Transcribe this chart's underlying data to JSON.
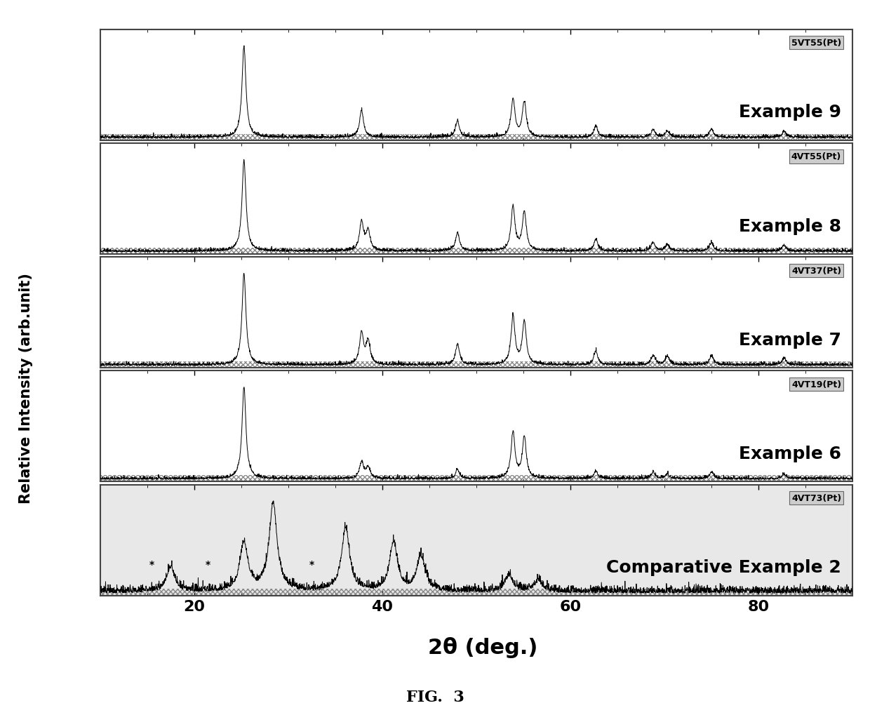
{
  "xlabel": "2θ (deg.)",
  "ylabel": "Relative Intensity (arb.unit)",
  "figure_title": "FIG.  3",
  "xmin": 10,
  "xmax": 90,
  "panels": [
    {
      "label": "Example 9",
      "sublabel": "5VT55(Pt)",
      "peaks": [
        25.3,
        37.8,
        48.0,
        53.9,
        55.1,
        62.7,
        68.8,
        70.3,
        75.0,
        82.7
      ],
      "heights": [
        1.0,
        0.3,
        0.18,
        0.42,
        0.38,
        0.12,
        0.08,
        0.07,
        0.09,
        0.06
      ],
      "widths": [
        0.25,
        0.25,
        0.25,
        0.25,
        0.25,
        0.25,
        0.25,
        0.25,
        0.25,
        0.25
      ],
      "noise_scale": 0.015,
      "is_comparative": false
    },
    {
      "label": "Example 8",
      "sublabel": "4VT55(Pt)",
      "peaks": [
        25.3,
        37.8,
        38.5,
        48.0,
        53.9,
        55.1,
        62.7,
        68.8,
        70.3,
        75.0,
        82.7
      ],
      "heights": [
        1.0,
        0.32,
        0.22,
        0.2,
        0.48,
        0.43,
        0.13,
        0.09,
        0.07,
        0.09,
        0.06
      ],
      "widths": [
        0.25,
        0.25,
        0.25,
        0.25,
        0.25,
        0.25,
        0.25,
        0.25,
        0.25,
        0.25,
        0.25
      ],
      "noise_scale": 0.015,
      "is_comparative": false
    },
    {
      "label": "Example 7",
      "sublabel": "4VT37(Pt)",
      "peaks": [
        25.3,
        37.8,
        38.5,
        48.0,
        53.9,
        55.1,
        62.7,
        68.8,
        70.3,
        75.0,
        82.7
      ],
      "heights": [
        1.0,
        0.35,
        0.25,
        0.22,
        0.52,
        0.47,
        0.15,
        0.1,
        0.09,
        0.1,
        0.07
      ],
      "widths": [
        0.25,
        0.25,
        0.25,
        0.25,
        0.25,
        0.25,
        0.25,
        0.25,
        0.25,
        0.25,
        0.25
      ],
      "noise_scale": 0.015,
      "is_comparative": false
    },
    {
      "label": "Example 6",
      "sublabel": "4VT19(Pt)",
      "peaks": [
        25.3,
        37.8,
        38.5,
        48.0,
        53.9,
        55.1,
        62.7,
        68.8,
        70.3,
        75.0,
        82.7
      ],
      "heights": [
        1.0,
        0.18,
        0.12,
        0.1,
        0.5,
        0.45,
        0.08,
        0.07,
        0.05,
        0.07,
        0.05
      ],
      "widths": [
        0.25,
        0.25,
        0.25,
        0.25,
        0.25,
        0.25,
        0.25,
        0.25,
        0.25,
        0.25,
        0.25
      ],
      "noise_scale": 0.015,
      "is_comparative": false
    },
    {
      "label": "Comparative Example 2",
      "sublabel": "4VT73(Pt)",
      "peaks": [
        17.5,
        25.3,
        28.4,
        36.1,
        41.2,
        44.1,
        53.5,
        56.6
      ],
      "heights": [
        0.28,
        0.55,
        1.0,
        0.72,
        0.55,
        0.4,
        0.18,
        0.12
      ],
      "widths": [
        0.5,
        0.5,
        0.5,
        0.5,
        0.5,
        0.5,
        0.5,
        0.5
      ],
      "noise_scale": 0.04,
      "is_comparative": true
    }
  ],
  "background_color": "#ffffff",
  "panel_bg_color": "#ffffff",
  "comp_bg_color": "#e8e8e8",
  "line_color": "#000000",
  "border_color": "#444444",
  "sublabel_bg": "#cccccc",
  "tick_label_fontsize": 16,
  "label_fontsize": 18,
  "sublabel_fontsize": 9,
  "ylabel_fontsize": 15,
  "xlabel_fontsize": 22,
  "title_fontsize": 16
}
